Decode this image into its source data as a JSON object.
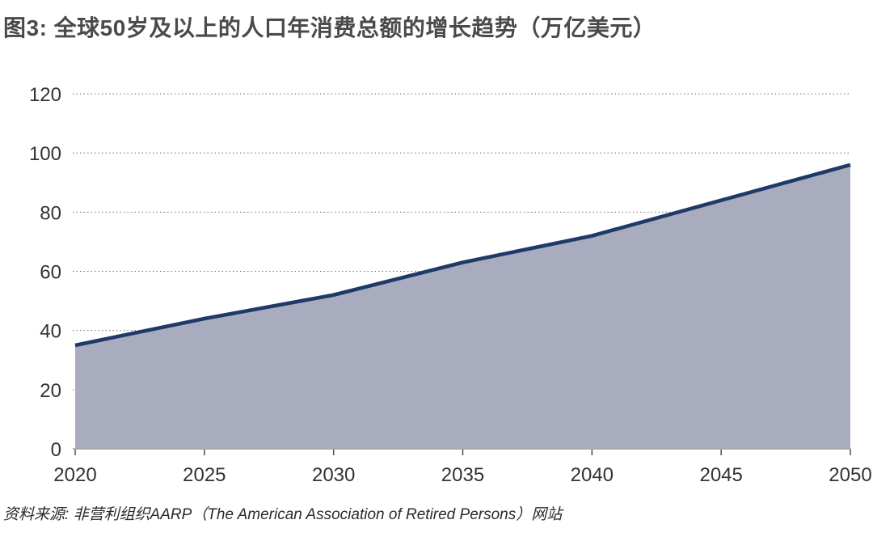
{
  "title": "图3: 全球50岁及以上的人口年消费总额的增长趋势（万亿美元）",
  "source": "资料来源: 非营利组织AARP（The American Association of Retired Persons）网站",
  "chart_data": {
    "type": "area",
    "title": "全球50岁及以上的人口年消费总额的增长趋势",
    "unit": "万亿美元",
    "x": [
      2020,
      2025,
      2030,
      2035,
      2040,
      2045,
      2050
    ],
    "x_ticks": [
      "2020",
      "2025",
      "2030",
      "2035",
      "2040",
      "2045",
      "2050"
    ],
    "values": [
      35,
      44,
      52,
      63,
      72,
      84,
      96
    ],
    "y_ticks": [
      0,
      20,
      40,
      60,
      80,
      100,
      120
    ],
    "ylim": [
      0,
      120
    ],
    "xlabel": "",
    "ylabel": "",
    "grid": "horizontal-dotted",
    "legend": "none",
    "colors": {
      "line": "#1f3a68",
      "fill": "#a9acbe",
      "axis": "#a8a8b0",
      "grid": "#737373",
      "tick": "#4d4d4d",
      "tick_label": "#333333",
      "title": "#4a4a4a"
    }
  }
}
